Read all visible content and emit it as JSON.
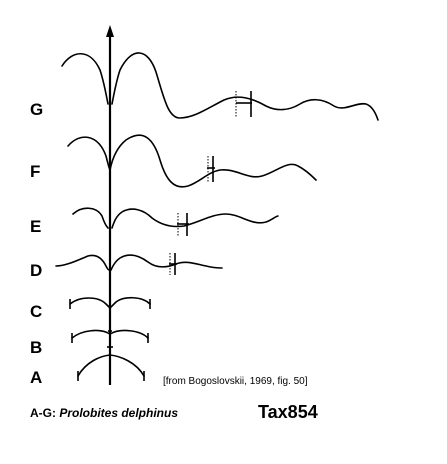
{
  "stage_labels": [
    "G",
    "F",
    "E",
    "D",
    "C",
    "B",
    "A"
  ],
  "source_note": "[from Bogoslovskii, 1969, fig. 50]",
  "caption": {
    "prefix": "A-G: ",
    "species": "Prolobites delphinus"
  },
  "plate_id": "Tax854"
}
